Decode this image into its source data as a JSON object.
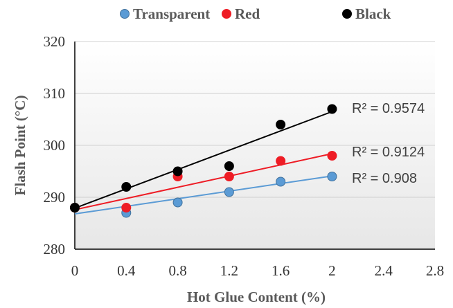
{
  "chart_data": {
    "type": "scatter",
    "xlabel": "Hot Glue Content (%)",
    "ylabel": "Flash Point (°C)",
    "xlim": [
      0,
      2.8
    ],
    "ylim": [
      280,
      320
    ],
    "xticks": [
      0,
      0.4,
      0.8,
      1.2,
      1.6,
      2,
      2.4,
      2.8
    ],
    "yticks": [
      280,
      290,
      300,
      310,
      320
    ],
    "xtick_labels": [
      "0",
      "0.4",
      "0.8",
      "1.2",
      "1.6",
      "2",
      "2.4",
      "2.8"
    ],
    "ytick_labels": [
      "280",
      "290",
      "300",
      "310",
      "320"
    ],
    "grid": "horizontal",
    "legend_position": "top",
    "series": [
      {
        "name": "Transparent",
        "color": "#5b9bd5",
        "marker_edge": "#41719c",
        "trend_color": "#5b9bd5",
        "x": [
          0,
          0.4,
          0.8,
          1.2,
          1.6,
          2
        ],
        "y": [
          288,
          287,
          289,
          291,
          293,
          294
        ],
        "trendline": {
          "start": [
            0,
            286.8
          ],
          "end": [
            2,
            294.1
          ]
        },
        "r2_label": "R² = 0.908"
      },
      {
        "name": "Red",
        "color": "#ee1c25",
        "marker_edge": "#ee1c25",
        "trend_color": "#ee1c25",
        "x": [
          0,
          0.4,
          0.8,
          1.2,
          1.6,
          2
        ],
        "y": [
          288,
          288,
          294,
          294,
          297,
          298
        ],
        "trendline": {
          "start": [
            0,
            287.6
          ],
          "end": [
            2,
            298.4
          ]
        },
        "r2_label": "R² = 0.9124"
      },
      {
        "name": "Black",
        "color": "#000000",
        "marker_edge": "#000000",
        "trend_color": "#000000",
        "x": [
          0,
          0.4,
          0.8,
          1.2,
          1.6,
          2
        ],
        "y": [
          288,
          292,
          295,
          296,
          304,
          307
        ],
        "trendline": {
          "start": [
            0,
            287.9
          ],
          "end": [
            2,
            306.5
          ]
        },
        "r2_label": "R² = 0.9574"
      }
    ]
  }
}
